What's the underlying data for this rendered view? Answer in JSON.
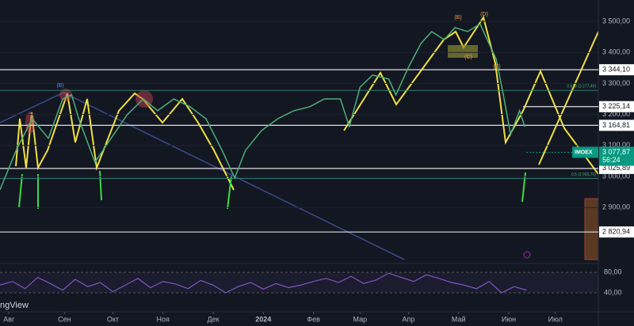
{
  "chart_data": {
    "type": "line",
    "xlim": [
      0,
      334
    ],
    "ylim": [
      2727,
      3569
    ],
    "color": "#4caf7a",
    "xticks": [
      {
        "value": 5,
        "label": "Авг"
      },
      {
        "value": 36,
        "label": "Сен"
      },
      {
        "value": 63,
        "label": "Окт"
      },
      {
        "value": 91,
        "label": "Ноя"
      },
      {
        "value": 119,
        "label": "Дек"
      },
      {
        "value": 147,
        "label": "2024"
      },
      {
        "value": 175,
        "label": "Фев"
      },
      {
        "value": 201,
        "label": "Мар"
      },
      {
        "value": 228,
        "label": "Апр"
      },
      {
        "value": 256,
        "label": "Май"
      },
      {
        "value": 284,
        "label": "Июн"
      },
      {
        "value": 310,
        "label": "Июл"
      }
    ],
    "yticks": [
      {
        "value": 3500,
        "label": "3 500,00"
      },
      {
        "value": 3400,
        "label": "3 400,00"
      },
      {
        "value": 3300,
        "label": "3 300,00"
      },
      {
        "value": 3200,
        "label": "3 200,00"
      },
      {
        "value": 3100,
        "label": "3 100,00"
      },
      {
        "value": 3000,
        "label": "3 000,00"
      },
      {
        "value": 2900,
        "label": "2 900,00"
      }
    ],
    "x": [
      0,
      9,
      18,
      27,
      35,
      40,
      44,
      53,
      62,
      71,
      80,
      88,
      97,
      106,
      115,
      124,
      131,
      137,
      146,
      155,
      164,
      173,
      181,
      190,
      195,
      201,
      208,
      217,
      221,
      228,
      235,
      241,
      248,
      254,
      261,
      268,
      272,
      277,
      281,
      285,
      290,
      293
    ],
    "values": [
      2957,
      3084,
      3186,
      3123,
      3250,
      3263,
      3186,
      3046,
      3123,
      3199,
      3250,
      3212,
      3250,
      3225,
      3186,
      3084,
      2995,
      3084,
      3148,
      3186,
      3212,
      3225,
      3250,
      3250,
      3161,
      3288,
      3327,
      3314,
      3263,
      3352,
      3429,
      3467,
      3441,
      3480,
      3467,
      3492,
      3441,
      3378,
      3263,
      3135,
      3212,
      3160
    ],
    "levels": [
      {
        "value": 3344.1,
        "label": "3 344,10"
      },
      {
        "value": 3225.14,
        "label": "3 225,14"
      },
      {
        "value": 3164.81,
        "label": "3 164,81"
      },
      {
        "value": 3025.89,
        "label": "3 025,89"
      },
      {
        "value": 2820.94,
        "label": "2 820,94"
      }
    ],
    "fib": [
      {
        "value": 3277.49,
        "label": "0,618 (3 277,49)"
      },
      {
        "value": 2993.7,
        "label": "0,5 (2 993,70)"
      }
    ],
    "current": {
      "symbol": "IMOEX",
      "value": 3077.87,
      "label": "3 077,87",
      "timer": "56:24"
    },
    "annotations": [
      "(B)",
      "(D)",
      "(C)",
      "(E)",
      "(B)"
    ],
    "watermark": "ngView",
    "rsi": {
      "ylim": [
        6,
        94
      ],
      "color": "#7e57c2",
      "yticks": [
        {
          "value": 80,
          "label": "80,00"
        },
        {
          "value": 40,
          "label": "40,00"
        }
      ],
      "x": [
        0,
        7,
        14,
        21,
        28,
        35,
        42,
        49,
        56,
        63,
        70,
        77,
        84,
        91,
        98,
        105,
        112,
        119,
        126,
        133,
        140,
        147,
        154,
        161,
        168,
        175,
        182,
        189,
        196,
        203,
        210,
        217,
        224,
        231,
        238,
        245,
        252,
        259,
        266,
        273,
        280,
        287,
        294
      ],
      "values": [
        55,
        62,
        48,
        70,
        58,
        45,
        66,
        52,
        60,
        42,
        55,
        68,
        50,
        62,
        57,
        48,
        64,
        55,
        40,
        52,
        60,
        47,
        58,
        50,
        55,
        62,
        68,
        60,
        72,
        58,
        65,
        78,
        70,
        62,
        75,
        68,
        60,
        55,
        48,
        62,
        40,
        52,
        45
      ]
    }
  }
}
